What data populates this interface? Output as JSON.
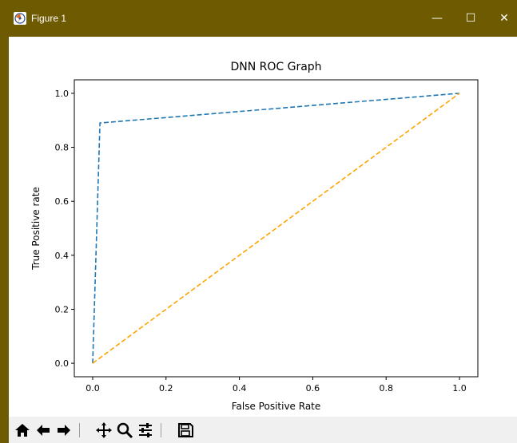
{
  "window": {
    "title": "Figure 1",
    "minimize_glyph": "—",
    "maximize_glyph": "☐",
    "close_glyph": "✕",
    "titlebar_color": "#6e5a00"
  },
  "toolbar": {
    "buttons": [
      {
        "name": "home-icon",
        "label": "Home"
      },
      {
        "name": "back-icon",
        "label": "Back"
      },
      {
        "name": "forward-icon",
        "label": "Forward"
      },
      {
        "name": "pan-icon",
        "label": "Pan"
      },
      {
        "name": "zoom-icon",
        "label": "Zoom"
      },
      {
        "name": "configure-subplots-icon",
        "label": "Configure subplots"
      },
      {
        "name": "save-icon",
        "label": "Save"
      }
    ]
  },
  "chart_data": {
    "type": "line",
    "title": "DNN ROC Graph",
    "xlabel": "False Positive Rate",
    "ylabel": "True Positive rate",
    "xlim": [
      -0.05,
      1.05
    ],
    "ylim": [
      -0.05,
      1.05
    ],
    "xticks": [
      0.0,
      0.2,
      0.4,
      0.6,
      0.8,
      1.0
    ],
    "xtick_labels": [
      "0.0",
      "0.2",
      "0.4",
      "0.6",
      "0.8",
      "1.0"
    ],
    "yticks": [
      0.0,
      0.2,
      0.4,
      0.6,
      0.8,
      1.0
    ],
    "ytick_labels": [
      "0.0",
      "0.2",
      "0.4",
      "0.6",
      "0.8",
      "1.0"
    ],
    "grid": false,
    "series": [
      {
        "x": [
          0.0,
          0.02,
          1.0
        ],
        "y": [
          0.0,
          0.89,
          1.0
        ],
        "color": "#1f77b4",
        "style": "dashed"
      },
      {
        "x": [
          0.0,
          1.0
        ],
        "y": [
          0.0,
          1.0
        ],
        "color": "#ffa500",
        "style": "dashed"
      }
    ]
  }
}
